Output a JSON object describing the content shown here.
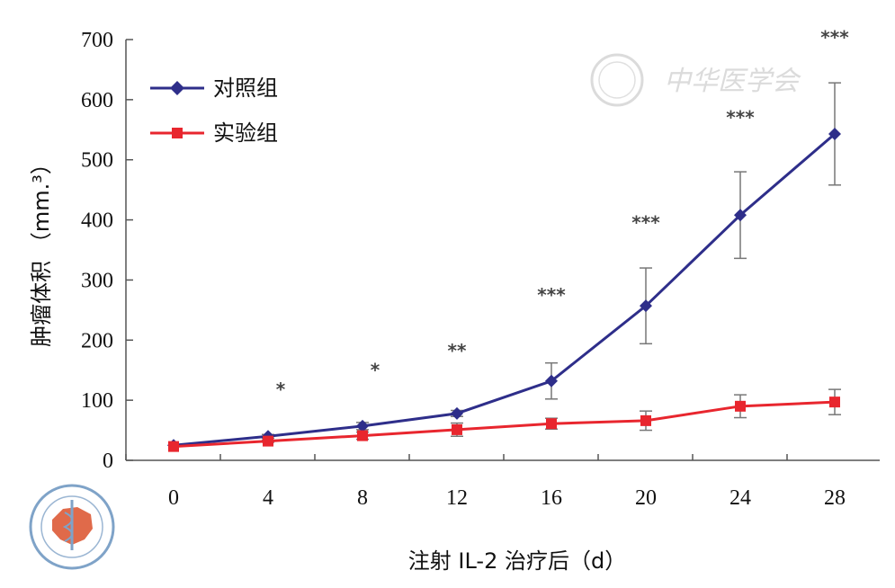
{
  "chart_data": {
    "type": "line",
    "xlabel": "注射 IL-2 治疗后（d）",
    "ylabel": "肿瘤体积 （mm.³）",
    "x": [
      0,
      4,
      8,
      12,
      16,
      20,
      24,
      28
    ],
    "xlim": [
      0,
      28
    ],
    "ylim": [
      0,
      700
    ],
    "yticks": [
      0,
      100,
      200,
      300,
      400,
      500,
      600,
      700
    ],
    "legend_position": "top-left",
    "series": [
      {
        "name": "对照组",
        "color": "#2e2e8a",
        "marker": "diamond",
        "values": [
          25,
          40,
          57,
          78,
          132,
          257,
          408,
          543
        ],
        "errors": [
          0,
          3,
          6,
          5,
          30,
          63,
          72,
          85
        ]
      },
      {
        "name": "实验组",
        "color": "#e8262e",
        "marker": "square",
        "values": [
          23,
          32,
          41,
          51,
          61,
          66,
          90,
          97
        ],
        "errors": [
          0,
          2,
          6,
          11,
          9,
          16,
          19,
          21
        ]
      }
    ],
    "significance": [
      {
        "x": 4,
        "label": "*",
        "y": 108
      },
      {
        "x": 8,
        "label": "*",
        "y": 140
      },
      {
        "x": 12,
        "label": "**",
        "y": 172
      },
      {
        "x": 16,
        "label": "***",
        "y": 265
      },
      {
        "x": 20,
        "label": "***",
        "y": 385
      },
      {
        "x": 24,
        "label": "***",
        "y": 560
      },
      {
        "x": 28,
        "label": "***",
        "y": 693
      }
    ]
  },
  "watermark": {
    "text": "中华医学会",
    "logo_color": "#e06a4a",
    "seal_text": "中华医学会 CHINESE MEDICAL ASSOCIATION 1915"
  }
}
